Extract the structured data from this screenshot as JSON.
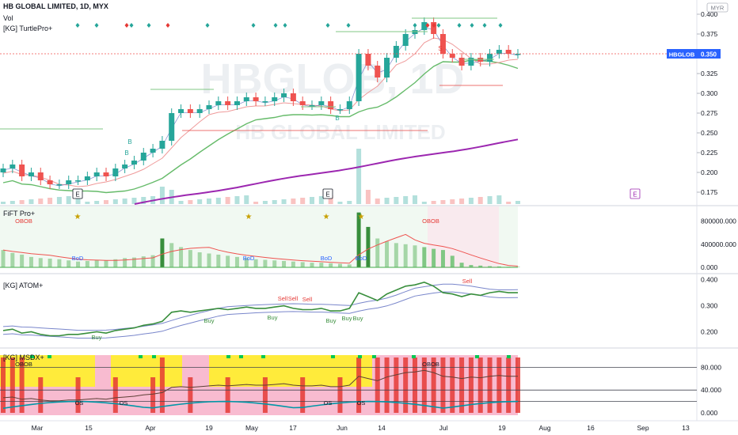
{
  "header": {
    "symbol_line": "HB GLOBAL LIMITED, 1D, MYX",
    "vol_label": "Vol",
    "turtle_label": "[KG] TurtlePro+",
    "currency": "MYR",
    "watermark": "HBGLOB, 1D",
    "watermark_sub": "HB GLOBAL LIMITED"
  },
  "price_tag": {
    "ticker": "HBGLOB",
    "value": "0.350",
    "color": "#2962ff"
  },
  "colors": {
    "up": "#26a69a",
    "down": "#ef5350",
    "green_dark": "#388e3c",
    "red": "#e53935",
    "ma_purple": "#9c27b0",
    "yellow": "#ffeb3b",
    "pink": "#f8bbd0"
  },
  "chart_data": [
    {
      "type": "candlestick",
      "title": "HB GLOBAL LIMITED, 1D, MYX",
      "yaxis_ticks": [
        "0.400",
        "0.375",
        "0.350",
        "0.325",
        "0.300",
        "0.275",
        "0.250",
        "0.225",
        "0.200",
        "0.175"
      ],
      "ylim": [
        0.16,
        0.4
      ],
      "xaxis_ticks": [
        "Mar",
        "15",
        "Apr",
        "19",
        "May",
        "17",
        "Jun",
        "14",
        "Jul",
        "19",
        "Aug",
        "16",
        "Sep",
        "13"
      ],
      "last_price": 0.35,
      "markers": [
        "E",
        "E",
        "E",
        "B",
        "B",
        "B",
        "S"
      ],
      "close_estimates": [
        0.205,
        0.21,
        0.195,
        0.2,
        0.19,
        0.185,
        0.185,
        0.19,
        0.19,
        0.195,
        0.2,
        0.195,
        0.205,
        0.21,
        0.215,
        0.225,
        0.23,
        0.24,
        0.275,
        0.28,
        0.275,
        0.28,
        0.285,
        0.29,
        0.285,
        0.29,
        0.295,
        0.29,
        0.29,
        0.295,
        0.3,
        0.29,
        0.285,
        0.285,
        0.29,
        0.28,
        0.28,
        0.29,
        0.35,
        0.335,
        0.32,
        0.345,
        0.36,
        0.375,
        0.38,
        0.39,
        0.375,
        0.35,
        0.345,
        0.335,
        0.345,
        0.34,
        0.35,
        0.355,
        0.35,
        0.35
      ]
    },
    {
      "type": "bar",
      "title": "FiFT Pro+",
      "yaxis_ticks": [
        "800000.000",
        "400000.000",
        "0.000"
      ],
      "ylim": [
        0,
        1000000
      ],
      "labels": [
        "OBOB",
        "BoD",
        "BoD",
        "BoD",
        "BoD",
        "OBOB"
      ]
    },
    {
      "type": "line",
      "title": "[KG] ATOM+",
      "yaxis_ticks": [
        "0.400",
        "0.300",
        "0.200"
      ],
      "ylim": [
        0.15,
        0.42
      ],
      "signals": [
        "Buy",
        "Buy",
        "Buy",
        "Buy",
        "Buy",
        "Buy",
        "Sell",
        "Sell",
        "Sell",
        "Sell"
      ]
    },
    {
      "type": "line",
      "title": "[KG] MSDX+",
      "yaxis_ticks": [
        "80.000",
        "40.000",
        "0.000"
      ],
      "ylim": [
        0,
        100
      ],
      "labels": [
        "OBOB",
        "OBOB",
        "OS",
        "OS",
        "OS",
        "OS"
      ]
    }
  ]
}
